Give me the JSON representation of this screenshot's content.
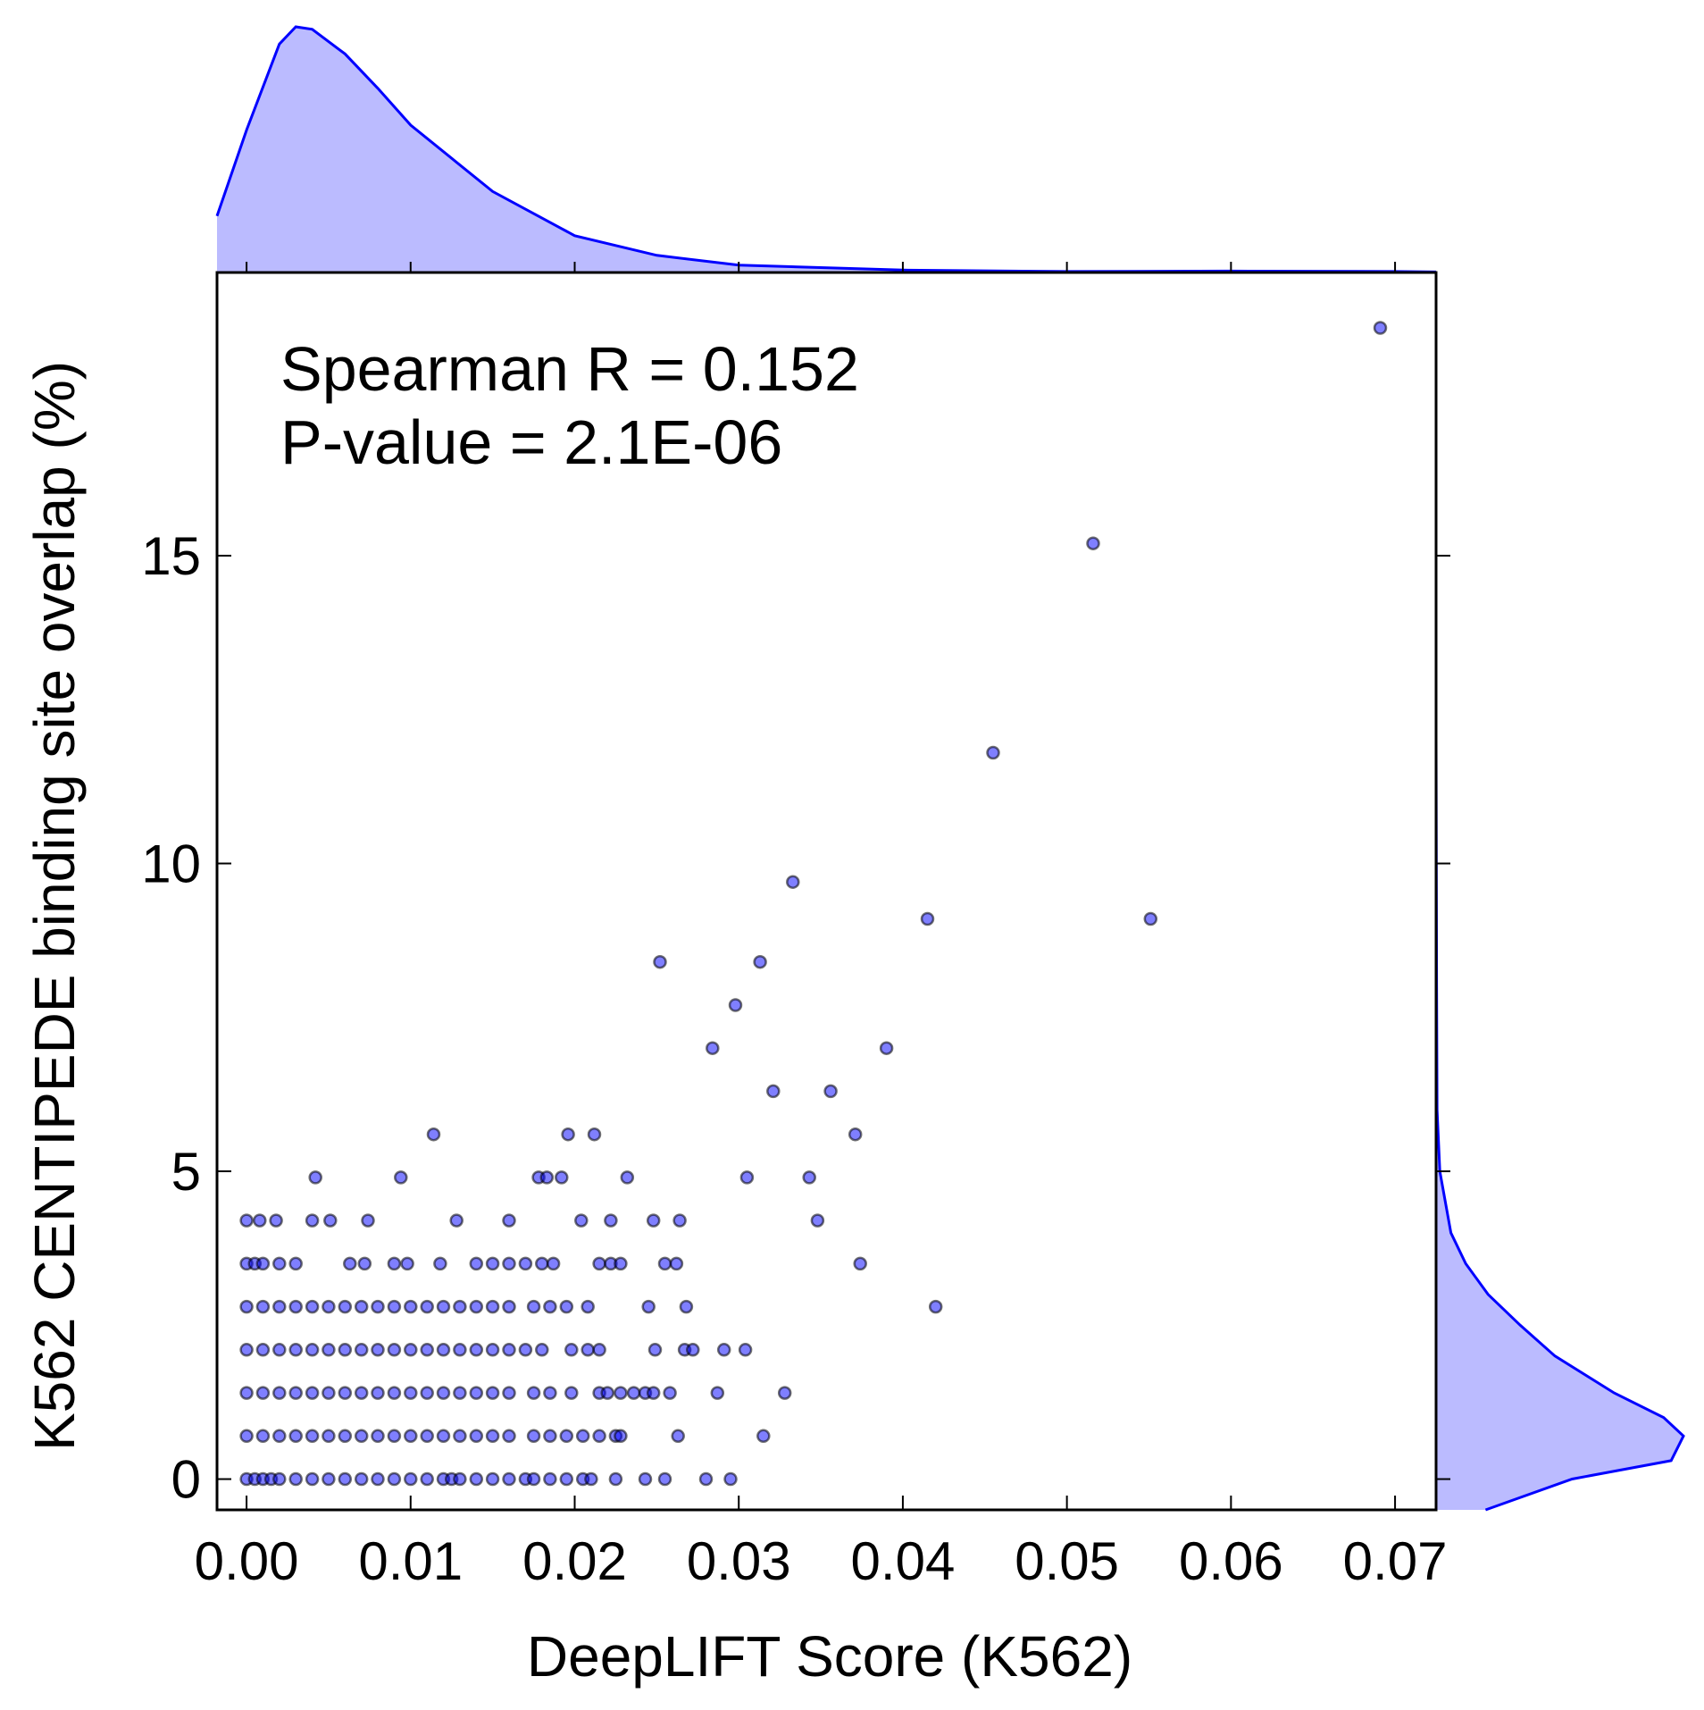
{
  "chart_data": {
    "type": "scatter",
    "title": "",
    "xlabel": "DeepLIFT Score (K562)",
    "ylabel": "K562 CENTIPEDE binding site overlap (%)",
    "xlim": [
      -0.0018,
      0.0725
    ],
    "ylim": [
      -0.5,
      19.6
    ],
    "x_ticks": [
      0.0,
      0.01,
      0.02,
      0.03,
      0.04,
      0.05,
      0.06,
      0.07
    ],
    "x_tick_labels": [
      "0.00",
      "0.01",
      "0.02",
      "0.03",
      "0.04",
      "0.05",
      "0.06",
      "0.07"
    ],
    "y_ticks": [
      0,
      5,
      10,
      15
    ],
    "y_tick_labels": [
      "0",
      "5",
      "10",
      "15"
    ],
    "grid": false,
    "annotations": [
      "Spearman R = 0.152",
      "P-value = 2.1E-06"
    ],
    "colors": {
      "points": "#0000ff",
      "point_edge": "#000000",
      "kde_line": "#0000ff",
      "kde_fill": "#bbbbff"
    },
    "marginal_top_kde": {
      "x": [
        -0.0018,
        0.0,
        0.002,
        0.003,
        0.004,
        0.006,
        0.008,
        0.01,
        0.015,
        0.02,
        0.025,
        0.03,
        0.04,
        0.05,
        0.06,
        0.07,
        0.0725
      ],
      "density": [
        0.23,
        0.58,
        0.93,
        1.0,
        0.99,
        0.89,
        0.75,
        0.6,
        0.33,
        0.15,
        0.07,
        0.03,
        0.01,
        0.004,
        0.006,
        0.004,
        0.002
      ]
    },
    "marginal_right_kde": {
      "y": [
        -0.5,
        0.0,
        0.3,
        0.7,
        1.0,
        1.4,
        2.0,
        2.5,
        3.0,
        3.5,
        4.0,
        5.0,
        6.0,
        8.0,
        10.0,
        12.0
      ],
      "density": [
        0.2,
        0.55,
        0.95,
        1.0,
        0.92,
        0.72,
        0.48,
        0.34,
        0.21,
        0.12,
        0.06,
        0.015,
        0.004,
        0.002,
        0.001,
        0.0
      ]
    },
    "series": [
      {
        "points": [
          [
            0.0,
            0.0
          ],
          [
            0.0005,
            0.0
          ],
          [
            0.001,
            0.0
          ],
          [
            0.0015,
            0.0
          ],
          [
            0.002,
            0.0
          ],
          [
            0.003,
            0.0
          ],
          [
            0.004,
            0.0
          ],
          [
            0.005,
            0.0
          ],
          [
            0.006,
            0.0
          ],
          [
            0.007,
            0.0
          ],
          [
            0.008,
            0.0
          ],
          [
            0.009,
            0.0
          ],
          [
            0.01,
            0.0
          ],
          [
            0.011,
            0.0
          ],
          [
            0.012,
            0.0
          ],
          [
            0.0125,
            0.0
          ],
          [
            0.013,
            0.0
          ],
          [
            0.014,
            0.0
          ],
          [
            0.015,
            0.0
          ],
          [
            0.016,
            0.0
          ],
          [
            0.017,
            0.0
          ],
          [
            0.0175,
            0.0
          ],
          [
            0.0185,
            0.0
          ],
          [
            0.0195,
            0.0
          ],
          [
            0.0205,
            0.0
          ],
          [
            0.021,
            0.0
          ],
          [
            0.0225,
            0.0
          ],
          [
            0.0243,
            0.0
          ],
          [
            0.0255,
            0.0
          ],
          [
            0.028,
            0.0
          ],
          [
            0.0295,
            0.0
          ],
          [
            0.0,
            0.7
          ],
          [
            0.001,
            0.7
          ],
          [
            0.002,
            0.7
          ],
          [
            0.003,
            0.7
          ],
          [
            0.004,
            0.7
          ],
          [
            0.005,
            0.7
          ],
          [
            0.006,
            0.7
          ],
          [
            0.007,
            0.7
          ],
          [
            0.008,
            0.7
          ],
          [
            0.009,
            0.7
          ],
          [
            0.01,
            0.7
          ],
          [
            0.011,
            0.7
          ],
          [
            0.012,
            0.7
          ],
          [
            0.013,
            0.7
          ],
          [
            0.014,
            0.7
          ],
          [
            0.015,
            0.7
          ],
          [
            0.016,
            0.7
          ],
          [
            0.0175,
            0.7
          ],
          [
            0.0185,
            0.7
          ],
          [
            0.0195,
            0.7
          ],
          [
            0.0205,
            0.7
          ],
          [
            0.0215,
            0.7
          ],
          [
            0.0225,
            0.7
          ],
          [
            0.0228,
            0.7
          ],
          [
            0.0263,
            0.7
          ],
          [
            0.0315,
            0.7
          ],
          [
            0.0,
            1.4
          ],
          [
            0.001,
            1.4
          ],
          [
            0.002,
            1.4
          ],
          [
            0.003,
            1.4
          ],
          [
            0.004,
            1.4
          ],
          [
            0.005,
            1.4
          ],
          [
            0.006,
            1.4
          ],
          [
            0.007,
            1.4
          ],
          [
            0.008,
            1.4
          ],
          [
            0.009,
            1.4
          ],
          [
            0.01,
            1.4
          ],
          [
            0.011,
            1.4
          ],
          [
            0.012,
            1.4
          ],
          [
            0.013,
            1.4
          ],
          [
            0.014,
            1.4
          ],
          [
            0.015,
            1.4
          ],
          [
            0.016,
            1.4
          ],
          [
            0.0175,
            1.4
          ],
          [
            0.0185,
            1.4
          ],
          [
            0.0198,
            1.4
          ],
          [
            0.0215,
            1.4
          ],
          [
            0.022,
            1.4
          ],
          [
            0.0228,
            1.4
          ],
          [
            0.0236,
            1.4
          ],
          [
            0.0243,
            1.4
          ],
          [
            0.0248,
            1.4
          ],
          [
            0.0258,
            1.4
          ],
          [
            0.0287,
            1.4
          ],
          [
            0.0328,
            1.4
          ],
          [
            0.0,
            2.1
          ],
          [
            0.001,
            2.1
          ],
          [
            0.002,
            2.1
          ],
          [
            0.003,
            2.1
          ],
          [
            0.004,
            2.1
          ],
          [
            0.005,
            2.1
          ],
          [
            0.006,
            2.1
          ],
          [
            0.007,
            2.1
          ],
          [
            0.008,
            2.1
          ],
          [
            0.009,
            2.1
          ],
          [
            0.01,
            2.1
          ],
          [
            0.011,
            2.1
          ],
          [
            0.012,
            2.1
          ],
          [
            0.013,
            2.1
          ],
          [
            0.014,
            2.1
          ],
          [
            0.015,
            2.1
          ],
          [
            0.016,
            2.1
          ],
          [
            0.017,
            2.1
          ],
          [
            0.018,
            2.1
          ],
          [
            0.0198,
            2.1
          ],
          [
            0.0208,
            2.1
          ],
          [
            0.0215,
            2.1
          ],
          [
            0.0249,
            2.1
          ],
          [
            0.0267,
            2.1
          ],
          [
            0.0272,
            2.1
          ],
          [
            0.0291,
            2.1
          ],
          [
            0.0304,
            2.1
          ],
          [
            0.0,
            2.8
          ],
          [
            0.001,
            2.8
          ],
          [
            0.002,
            2.8
          ],
          [
            0.003,
            2.8
          ],
          [
            0.004,
            2.8
          ],
          [
            0.005,
            2.8
          ],
          [
            0.006,
            2.8
          ],
          [
            0.007,
            2.8
          ],
          [
            0.008,
            2.8
          ],
          [
            0.009,
            2.8
          ],
          [
            0.01,
            2.8
          ],
          [
            0.011,
            2.8
          ],
          [
            0.012,
            2.8
          ],
          [
            0.013,
            2.8
          ],
          [
            0.014,
            2.8
          ],
          [
            0.015,
            2.8
          ],
          [
            0.016,
            2.8
          ],
          [
            0.0175,
            2.8
          ],
          [
            0.0185,
            2.8
          ],
          [
            0.0195,
            2.8
          ],
          [
            0.0208,
            2.8
          ],
          [
            0.0245,
            2.8
          ],
          [
            0.0268,
            2.8
          ],
          [
            0.042,
            2.8
          ],
          [
            0.0,
            3.5
          ],
          [
            0.0005,
            3.5
          ],
          [
            0.001,
            3.5
          ],
          [
            0.002,
            3.5
          ],
          [
            0.003,
            3.5
          ],
          [
            0.0063,
            3.5
          ],
          [
            0.0072,
            3.5
          ],
          [
            0.009,
            3.5
          ],
          [
            0.0098,
            3.5
          ],
          [
            0.0118,
            3.5
          ],
          [
            0.014,
            3.5
          ],
          [
            0.015,
            3.5
          ],
          [
            0.016,
            3.5
          ],
          [
            0.017,
            3.5
          ],
          [
            0.018,
            3.5
          ],
          [
            0.0187,
            3.5
          ],
          [
            0.0215,
            3.5
          ],
          [
            0.0222,
            3.5
          ],
          [
            0.0228,
            3.5
          ],
          [
            0.0255,
            3.5
          ],
          [
            0.0262,
            3.5
          ],
          [
            0.0374,
            3.5
          ],
          [
            0.0,
            4.2
          ],
          [
            0.0008,
            4.2
          ],
          [
            0.0018,
            4.2
          ],
          [
            0.004,
            4.2
          ],
          [
            0.0051,
            4.2
          ],
          [
            0.0074,
            4.2
          ],
          [
            0.0128,
            4.2
          ],
          [
            0.016,
            4.2
          ],
          [
            0.0204,
            4.2
          ],
          [
            0.0222,
            4.2
          ],
          [
            0.0248,
            4.2
          ],
          [
            0.0264,
            4.2
          ],
          [
            0.0348,
            4.2
          ],
          [
            0.0042,
            4.9
          ],
          [
            0.0094,
            4.9
          ],
          [
            0.0178,
            4.9
          ],
          [
            0.0183,
            4.9
          ],
          [
            0.0192,
            4.9
          ],
          [
            0.0232,
            4.9
          ],
          [
            0.0305,
            4.9
          ],
          [
            0.0343,
            4.9
          ],
          [
            0.0114,
            5.6
          ],
          [
            0.0196,
            5.6
          ],
          [
            0.0212,
            5.6
          ],
          [
            0.0371,
            5.6
          ],
          [
            0.0321,
            6.3
          ],
          [
            0.0356,
            6.3
          ],
          [
            0.0284,
            7.0
          ],
          [
            0.039,
            7.0
          ],
          [
            0.0298,
            7.7
          ],
          [
            0.0252,
            8.4
          ],
          [
            0.0313,
            8.4
          ],
          [
            0.0415,
            9.1
          ],
          [
            0.0551,
            9.1
          ],
          [
            0.0333,
            9.7
          ],
          [
            0.0455,
            11.8
          ],
          [
            0.0516,
            15.2
          ],
          [
            0.0691,
            18.7
          ]
        ]
      }
    ]
  }
}
